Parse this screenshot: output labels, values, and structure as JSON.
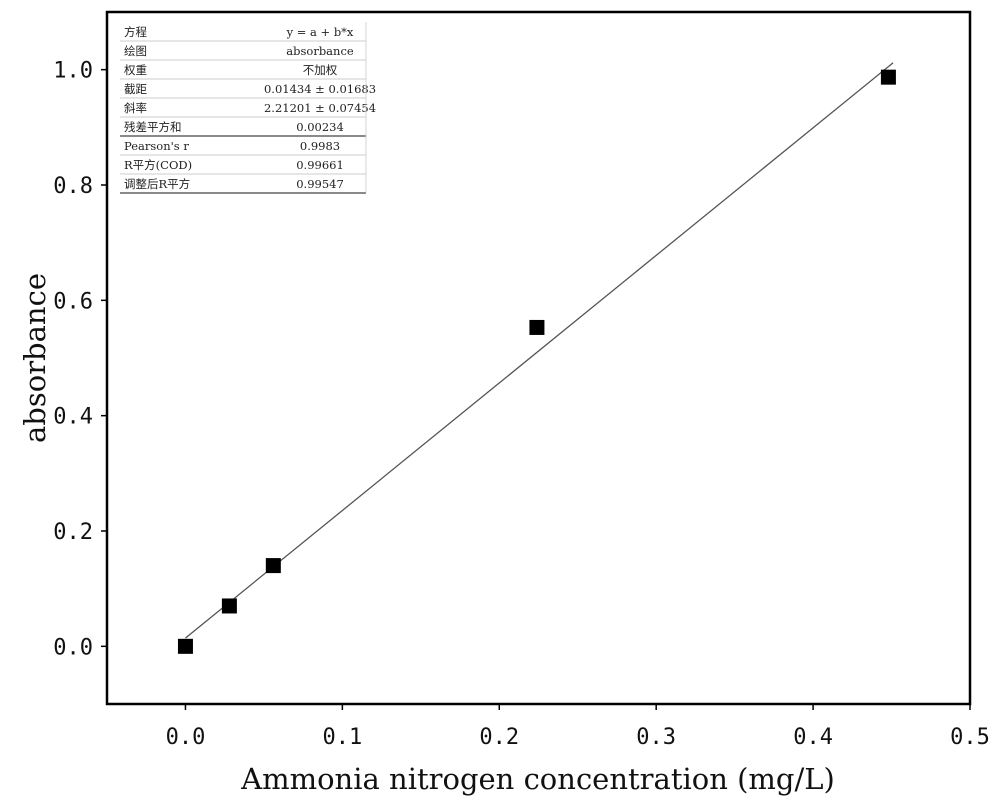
{
  "chart_data": {
    "type": "scatter",
    "xlabel": "Ammonia nitrogen concentration (mg/L)",
    "ylabel": "absorbance",
    "xlim": [
      -0.05,
      0.5
    ],
    "ylim": [
      -0.1,
      1.1
    ],
    "x_ticks": [
      0.0,
      0.1,
      0.2,
      0.3,
      0.4,
      0.5
    ],
    "y_ticks": [
      0.0,
      0.2,
      0.4,
      0.6,
      0.8,
      1.0
    ],
    "x_tick_labels": [
      "0.0",
      "0.1",
      "0.2",
      "0.3",
      "0.4",
      "0.5"
    ],
    "y_tick_labels": [
      "0.0",
      "0.2",
      "0.4",
      "0.6",
      "0.8",
      "1.0"
    ],
    "grid": false,
    "series": [
      {
        "marker": "square",
        "color": "#000000",
        "x": [
          0.0,
          0.028,
          0.056,
          0.224,
          0.448
        ],
        "y": [
          0.0,
          0.07,
          0.14,
          0.553,
          0.987
        ]
      }
    ],
    "fit_line": {
      "intercept": 0.01434,
      "slope": 2.21201,
      "x_range": [
        0.0,
        0.448
      ],
      "color": "#555555"
    },
    "fit_table": [
      {
        "label": "方程",
        "value": "y = a + b*x"
      },
      {
        "label": "绘图",
        "value": "absorbance"
      },
      {
        "label": "权重",
        "value": "不加权"
      },
      {
        "label": "截距",
        "value": "0.01434 ± 0.01683"
      },
      {
        "label": "斜率",
        "value": "2.21201 ± 0.07454"
      },
      {
        "label": "残差平方和",
        "value": "0.00234"
      },
      {
        "label": "Pearson's r",
        "value": "0.9983"
      },
      {
        "label": "R平方(COD)",
        "value": "0.99661"
      },
      {
        "label": "调整后R平方",
        "value": "0.99547"
      }
    ],
    "fit_table_placement": "top-left"
  }
}
